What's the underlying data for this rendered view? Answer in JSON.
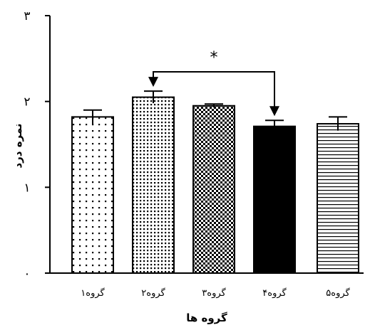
{
  "chart_data": {
    "type": "bar",
    "categories": [
      "گروه۱",
      "گروه۲",
      "گروه۳",
      "گروه۴",
      "گروه۵"
    ],
    "values": [
      1.82,
      2.05,
      1.95,
      1.71,
      1.74
    ],
    "errors": [
      0.08,
      0.07,
      0.02,
      0.07,
      0.08
    ],
    "patterns": [
      "dots-sparse",
      "dots-dense",
      "checker",
      "solid-black",
      "hlines"
    ],
    "ylim": [
      0,
      3
    ],
    "yticks": [
      0,
      1,
      2,
      3
    ],
    "ytick_labels": [
      "۰",
      "۱",
      "۲",
      "۳"
    ],
    "xlabel": "گروه ها",
    "ylabel": "نمره درد",
    "title": "",
    "grid": false,
    "annotations": [
      {
        "type": "significance",
        "from": 1,
        "to": 3,
        "text": "*"
      }
    ]
  }
}
